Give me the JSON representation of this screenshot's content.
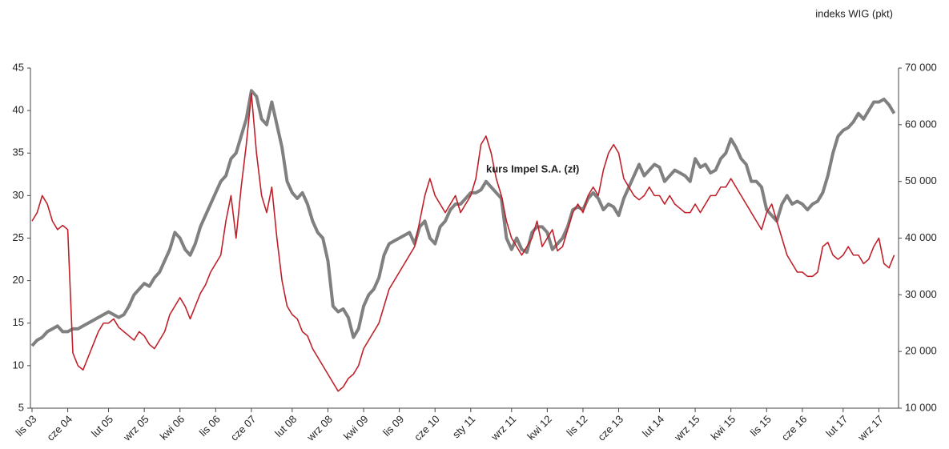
{
  "chart_data": {
    "type": "line",
    "categories": [
      "lis 03",
      null,
      null,
      null,
      null,
      null,
      null,
      "cze 04",
      null,
      null,
      null,
      null,
      null,
      null,
      null,
      "lut 05",
      null,
      null,
      null,
      null,
      null,
      null,
      "wrz 05",
      null,
      null,
      null,
      null,
      null,
      null,
      "kwi 06",
      null,
      null,
      null,
      null,
      null,
      null,
      "lis 06",
      null,
      null,
      null,
      null,
      null,
      null,
      "cze 07",
      null,
      null,
      null,
      null,
      null,
      null,
      null,
      "lut 08",
      null,
      null,
      null,
      null,
      null,
      null,
      "wrz 08",
      null,
      null,
      null,
      null,
      null,
      null,
      "kwi 09",
      null,
      null,
      null,
      null,
      null,
      null,
      "lis 09",
      null,
      null,
      null,
      null,
      null,
      null,
      "cze 10",
      null,
      null,
      null,
      null,
      null,
      null,
      "sty 11",
      null,
      null,
      null,
      null,
      null,
      null,
      null,
      "wrz 11",
      null,
      null,
      null,
      null,
      null,
      null,
      "kwi 12",
      null,
      null,
      null,
      null,
      null,
      null,
      "lis 12",
      null,
      null,
      null,
      null,
      null,
      null,
      "cze 13",
      null,
      null,
      null,
      null,
      null,
      null,
      null,
      "lut 14",
      null,
      null,
      null,
      null,
      null,
      null,
      "wrz 15",
      null,
      null,
      null,
      null,
      null,
      null,
      "kwi 15",
      null,
      null,
      null,
      null,
      null,
      null,
      "lis 15",
      null,
      null,
      null,
      null,
      null,
      null,
      "cze 16",
      null,
      null,
      null,
      null,
      null,
      null,
      null,
      "lut 17",
      null,
      null,
      null,
      null,
      null,
      null,
      "wrz 17",
      null,
      null,
      null
    ],
    "series": [
      {
        "name": "indeks WIG (pkt)",
        "color": "#808080",
        "axis": "y2",
        "values": [
          21000,
          22000,
          22500,
          23500,
          24000,
          24500,
          23500,
          23500,
          24000,
          24000,
          24500,
          25000,
          25500,
          26000,
          26500,
          27000,
          26500,
          26000,
          26500,
          28000,
          30000,
          31000,
          32000,
          31500,
          33000,
          34000,
          36000,
          38000,
          41000,
          40000,
          38000,
          37000,
          39000,
          42000,
          44000,
          46000,
          48000,
          50000,
          51000,
          54000,
          55000,
          58000,
          61000,
          66000,
          65000,
          61000,
          60000,
          64000,
          60000,
          56000,
          50000,
          48000,
          47000,
          48000,
          46000,
          43000,
          41000,
          40000,
          36000,
          28000,
          27000,
          27500,
          26000,
          22500,
          24000,
          28000,
          30000,
          31000,
          33000,
          37000,
          39000,
          39500,
          40000,
          40500,
          41000,
          39000,
          42000,
          43000,
          40000,
          39000,
          42000,
          43000,
          45000,
          46000,
          46000,
          47000,
          48000,
          48000,
          48500,
          50000,
          49000,
          48000,
          47000,
          40000,
          38000,
          40000,
          38000,
          37500,
          41000,
          42000,
          42000,
          41000,
          38000,
          39000,
          40000,
          42000,
          45000,
          45500,
          45000,
          47000,
          48000,
          47000,
          45000,
          46000,
          45500,
          44000,
          47000,
          49000,
          51000,
          53000,
          51000,
          52000,
          53000,
          52500,
          50000,
          51000,
          52000,
          51500,
          51000,
          50000,
          54000,
          52500,
          53000,
          51500,
          52000,
          54000,
          55000,
          57500,
          56000,
          54000,
          53000,
          50000,
          50000,
          49000,
          45000,
          44000,
          43000,
          46000,
          47500,
          46000,
          46500,
          46000,
          45000,
          46000,
          46500,
          48000,
          51000,
          55000,
          58000,
          59000,
          59500,
          60500,
          62000,
          61000,
          62500,
          64000,
          64000,
          64500,
          63500,
          62000
        ]
      },
      {
        "name": "kurs Impel S.A. (zł)",
        "color": "#c0202a",
        "axis": "y",
        "values": [
          27,
          28,
          30,
          29,
          27,
          26,
          26.5,
          26,
          11.5,
          10,
          9.5,
          11,
          12.5,
          14,
          15,
          15,
          15.5,
          14.5,
          14,
          13.5,
          13,
          14,
          13.5,
          12.5,
          12,
          13,
          14,
          16,
          17,
          18,
          17,
          15.5,
          17,
          18.5,
          19.5,
          21,
          22,
          23,
          27,
          30,
          25,
          31,
          36,
          42,
          35,
          30,
          28,
          31,
          25,
          20,
          17,
          16,
          15.5,
          14,
          13.5,
          12,
          11,
          10,
          9,
          8,
          7,
          7.5,
          8.5,
          9,
          10,
          12,
          13,
          14,
          15,
          17,
          19,
          20,
          21,
          22,
          23,
          24,
          27,
          30,
          32,
          30,
          29,
          28,
          29,
          30,
          28,
          29,
          30,
          32,
          36,
          37,
          35,
          32,
          30,
          27,
          25,
          24,
          23,
          24,
          25,
          27,
          24,
          25,
          26,
          23.5,
          24,
          26,
          28,
          29,
          28,
          30,
          31,
          30,
          33,
          35,
          36,
          35,
          32,
          31,
          30,
          29.5,
          30,
          31,
          30,
          30,
          29,
          30,
          29,
          28.5,
          28,
          28,
          29,
          28,
          29,
          30,
          30,
          31,
          31,
          32,
          31,
          30,
          29,
          28,
          27,
          26,
          28,
          29,
          27,
          25,
          23,
          22,
          21,
          21,
          20.5,
          20.5,
          21,
          24,
          24.5,
          23,
          22.5,
          23,
          24,
          23,
          23,
          22,
          22.5,
          24,
          25,
          22,
          21.5,
          23
        ]
      }
    ],
    "ylim": [
      5,
      45
    ],
    "yticks": [
      5,
      10,
      15,
      20,
      25,
      30,
      35,
      40,
      45
    ],
    "y2lim": [
      10000,
      70000
    ],
    "y2ticks": [
      {
        "value": 10000,
        "label": "10 000"
      },
      {
        "value": 20000,
        "label": "20 000"
      },
      {
        "value": 30000,
        "label": "30 000"
      },
      {
        "value": 40000,
        "label": "40 000"
      },
      {
        "value": 50000,
        "label": "50 000"
      },
      {
        "value": 60000,
        "label": "60 000"
      },
      {
        "value": 70000,
        "label": "70 000"
      }
    ],
    "grid": false
  }
}
